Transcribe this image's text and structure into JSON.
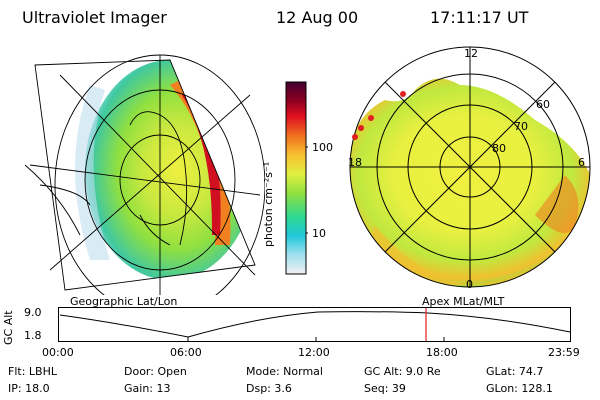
{
  "header": {
    "instrument": "Ultraviolet Imager",
    "date": "12 Aug 00",
    "time": "17:11:17 UT"
  },
  "left_panel": {
    "caption": "Geographic Lat/Lon"
  },
  "right_panel": {
    "caption": "Apex MLat/MLT",
    "mlt_labels": [
      "12",
      "18",
      "6",
      "0"
    ],
    "mlat_labels": [
      "60",
      "70",
      "80"
    ]
  },
  "colorbar": {
    "label": "photon cm⁻²s⁻¹",
    "ticks": [
      "100",
      "10"
    ],
    "colors": [
      "#f0f0f0",
      "#a0e0f0",
      "#20c8d8",
      "#30d890",
      "#90e040",
      "#e0f040",
      "#f8c030",
      "#f07020",
      "#e01020",
      "#900020",
      "#400030"
    ]
  },
  "altitude_plot": {
    "ylabel": "GC Alt",
    "ymax": "9.0",
    "ymin": "1.8",
    "xticks": [
      "00:00",
      "06:00",
      "12:00",
      "18:00",
      "23:59"
    ],
    "marker_color": "#e02020"
  },
  "status": {
    "flt": "Flt: LBHL",
    "door": "Door: Open",
    "mode": "Mode: Normal",
    "gc_alt": "GC Alt: 9.0 Re",
    "glat": "GLat:  74.7",
    "ip": "IP: 18.0",
    "gain": "Gain: 13",
    "dsp": "Dsp:     3.6",
    "seq": "Seq: 39",
    "glon": "GLon: 128.1"
  }
}
